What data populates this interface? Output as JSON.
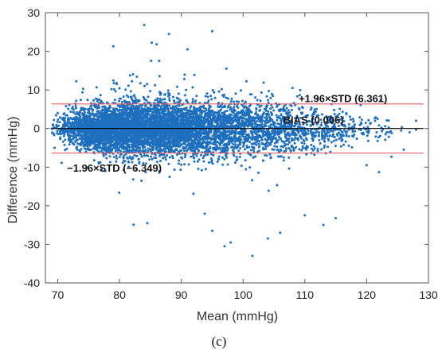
{
  "panel_label": "(c)",
  "chart_data": {
    "type": "scatter",
    "title": "",
    "xlabel": "Mean (mmHg)",
    "ylabel": "Difference (mmHg)",
    "xlim": [
      68,
      130
    ],
    "ylim": [
      -40,
      30
    ],
    "x_ticks": [
      70,
      80,
      90,
      100,
      110,
      120,
      130
    ],
    "y_ticks": [
      -40,
      -30,
      -20,
      -10,
      0,
      10,
      20,
      30
    ],
    "grid": false,
    "point_color": "#1f6fbf",
    "reference_lines": [
      {
        "name": "upper-limit",
        "y": 6.361,
        "color": "#e8606a"
      },
      {
        "name": "bias",
        "y": 0.006,
        "color": "#000000"
      },
      {
        "name": "lower-limit",
        "y": -6.349,
        "color": "#e8606a"
      }
    ],
    "annotations": [
      {
        "text": "+1.96×STD (6.361)",
        "x": 109,
        "y": 6.8
      },
      {
        "text": "BIAS (0.006)",
        "x": 106.5,
        "y": 1.3
      },
      {
        "text": "−1.96×STD (−6.349)",
        "x": 71.5,
        "y": -11.2
      }
    ],
    "density": [
      {
        "x": 70,
        "sd": 1.6,
        "w": 1.0
      },
      {
        "x": 72,
        "sd": 2.2,
        "w": 4.0
      },
      {
        "x": 75,
        "sd": 2.8,
        "w": 9.0
      },
      {
        "x": 78,
        "sd": 3.2,
        "w": 12.0
      },
      {
        "x": 82,
        "sd": 3.4,
        "w": 13.0
      },
      {
        "x": 86,
        "sd": 3.4,
        "w": 12.0
      },
      {
        "x": 90,
        "sd": 3.5,
        "w": 10.0
      },
      {
        "x": 95,
        "sd": 3.6,
        "w": 7.0
      },
      {
        "x": 100,
        "sd": 3.5,
        "w": 5.0
      },
      {
        "x": 105,
        "sd": 3.3,
        "w": 3.5
      },
      {
        "x": 110,
        "sd": 2.9,
        "w": 2.2
      },
      {
        "x": 115,
        "sd": 2.4,
        "w": 1.2
      },
      {
        "x": 120,
        "sd": 2.0,
        "w": 0.4
      },
      {
        "x": 125,
        "sd": 1.7,
        "w": 0.1
      },
      {
        "x": 129,
        "sd": 1.5,
        "w": 0.03
      }
    ],
    "outliers": [
      [
        84,
        26.8
      ],
      [
        88,
        24.5
      ],
      [
        95,
        25.2
      ],
      [
        79,
        21.3
      ],
      [
        86,
        21.8
      ],
      [
        91,
        20.5
      ],
      [
        84.5,
        -24.5
      ],
      [
        95,
        -26.5
      ],
      [
        98,
        -29.5
      ],
      [
        101.5,
        -33
      ],
      [
        104,
        -28.5
      ],
      [
        106,
        -27
      ],
      [
        110,
        -22.5
      ],
      [
        113,
        -25
      ],
      [
        115,
        -23.2
      ],
      [
        97,
        -30.5
      ],
      [
        122,
        -11.3
      ],
      [
        126,
        -5.5
      ],
      [
        124,
        -7.3
      ],
      [
        120,
        -9.5
      ],
      [
        128,
        2.0
      ],
      [
        123,
        0.6
      ],
      [
        70,
        4.0
      ],
      [
        69.5,
        -5.0
      ],
      [
        73,
        7.2
      ],
      [
        108,
        10.5
      ],
      [
        112,
        7.7
      ],
      [
        119,
        6.1
      ]
    ]
  }
}
